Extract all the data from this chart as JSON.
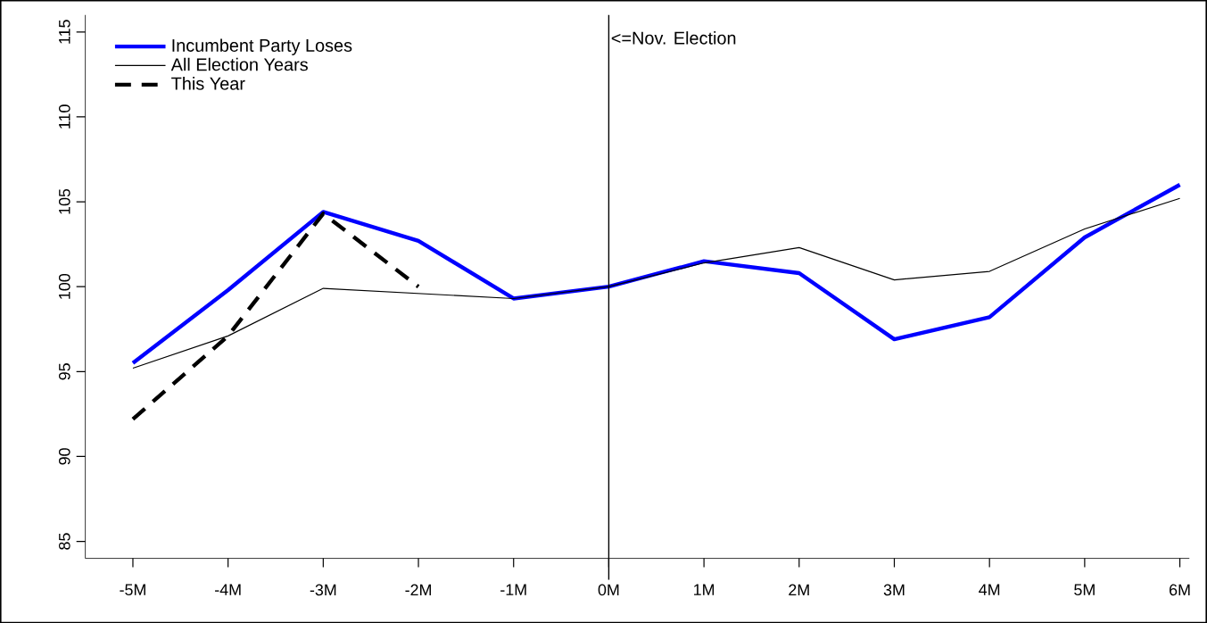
{
  "chart_data": {
    "type": "line",
    "x": [
      -5,
      -4,
      -3,
      -2,
      -1,
      0,
      1,
      2,
      3,
      4,
      5,
      6
    ],
    "xlim": [
      -5.5,
      6.1
    ],
    "ylim": [
      84,
      116
    ],
    "xticks": [
      {
        "value": -5,
        "label": "-5M"
      },
      {
        "value": -4,
        "label": "-4M"
      },
      {
        "value": -3,
        "label": "-3M"
      },
      {
        "value": -2,
        "label": "-2M"
      },
      {
        "value": -1,
        "label": "-1M"
      },
      {
        "value": 0,
        "label": "0M"
      },
      {
        "value": 1,
        "label": "1M"
      },
      {
        "value": 2,
        "label": "2M"
      },
      {
        "value": 3,
        "label": "3M"
      },
      {
        "value": 4,
        "label": "4M"
      },
      {
        "value": 5,
        "label": "5M"
      },
      {
        "value": 6,
        "label": "6M"
      }
    ],
    "yticks": [
      85,
      90,
      95,
      100,
      105,
      110,
      115
    ],
    "series": [
      {
        "name": "Incumbent Party Loses",
        "color": "#0000ff",
        "line_style": "solid",
        "values": [
          95.5,
          99.8,
          104.4,
          102.7,
          99.3,
          100,
          101.5,
          100.8,
          96.9,
          98.2,
          102.9,
          106
        ]
      },
      {
        "name": "All Election Years",
        "color": "#000000",
        "line_style": "solid",
        "values": [
          95.2,
          97.1,
          99.9,
          99.6,
          99.3,
          100,
          101.4,
          102.3,
          100.4,
          100.9,
          103.4,
          105.2
        ]
      },
      {
        "name": "This Year",
        "color": "#000000",
        "line_style": "dashed",
        "values": [
          92.2,
          97.1,
          104.3,
          100,
          null,
          null,
          null,
          null,
          null,
          null,
          null,
          null
        ]
      }
    ],
    "ref_lines": [
      {
        "axis": "x",
        "value": 0,
        "label": "<=Nov. Election",
        "color": "#000000"
      }
    ],
    "legend": "top left",
    "grid": false,
    "marker": "none"
  }
}
